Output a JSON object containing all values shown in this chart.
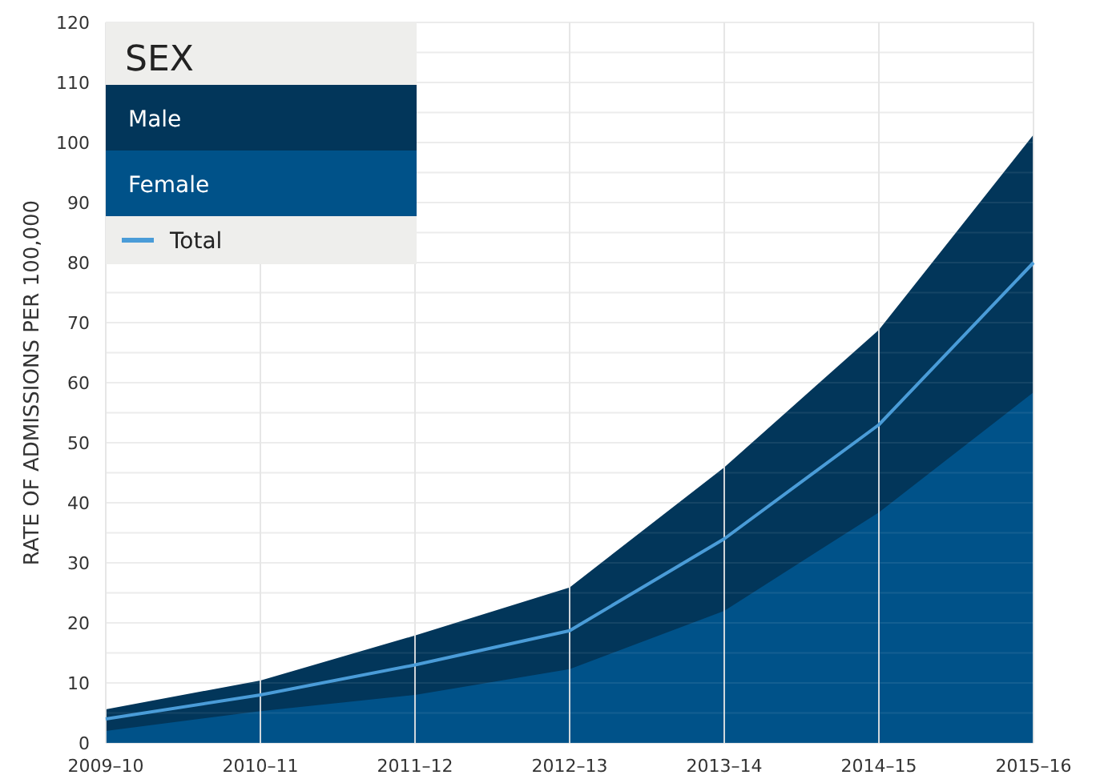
{
  "chart_data": {
    "type": "area",
    "ylabel": "RATE OF ADMISSIONS PER 100,000",
    "legend_title": "SEX",
    "categories": [
      "2009–10",
      "2010–11",
      "2011–12",
      "2012–13",
      "2013–14",
      "2014–15",
      "2015–16"
    ],
    "series": [
      {
        "name": "Male",
        "color": "#02365a",
        "values": [
          5.6,
          10.4,
          17.9,
          25.9,
          45.9,
          68.8,
          101.3
        ]
      },
      {
        "name": "Female",
        "color": "#005289",
        "values": [
          2,
          5.3,
          8,
          12.3,
          22,
          38.4,
          58.4
        ]
      },
      {
        "name": "Total",
        "type": "line",
        "color": "#4a9cd8",
        "values": [
          4,
          8,
          13,
          18.7,
          34,
          53,
          80
        ]
      }
    ],
    "ylim": [
      0,
      120
    ],
    "yticks": [
      0,
      {
        "value": 5,
        "label": null
      },
      10,
      {
        "value": 15,
        "label": null
      },
      20,
      {
        "value": 25,
        "label": null
      },
      30,
      {
        "value": 35,
        "label": null
      },
      40,
      {
        "value": 45,
        "label": null
      },
      50,
      {
        "value": 55,
        "label": null
      },
      60,
      {
        "value": 65,
        "label": null
      },
      70,
      {
        "value": 75,
        "label": null
      },
      80,
      {
        "value": 85,
        "label": null
      },
      90,
      {
        "value": 95,
        "label": null
      },
      100,
      {
        "value": 105,
        "label": null
      },
      110,
      {
        "value": 115,
        "label": null
      },
      120
    ],
    "grid": true,
    "legend": "top left"
  }
}
